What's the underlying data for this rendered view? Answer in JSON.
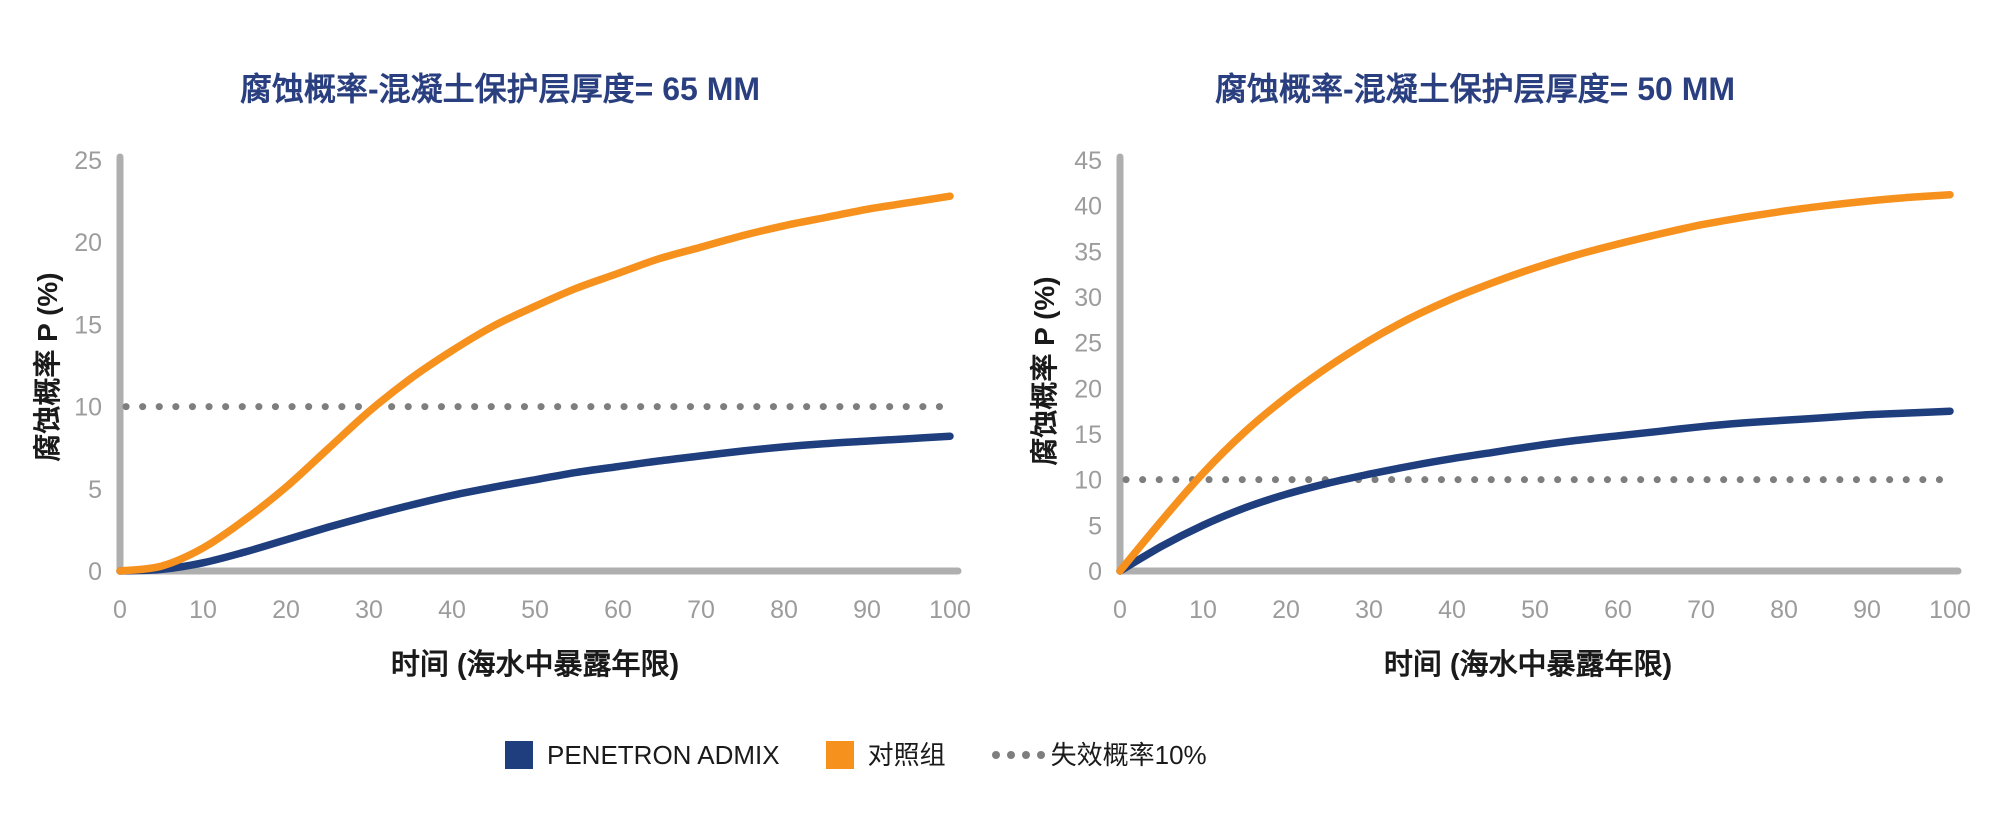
{
  "page": {
    "background": "#ffffff"
  },
  "colors": {
    "title_blue": "#2A3F80",
    "series_blue": "#1F3E7E",
    "series_orange": "#F6911E",
    "threshold_gray": "#7E7E7E",
    "axis_gray": "#AFAFAF",
    "tick_gray": "#9C9C9C",
    "text_black": "#1a1a1a"
  },
  "legend": {
    "items": [
      {
        "label": "PENETRON ADMIX",
        "swatch": "square",
        "color": "#1F3E7E"
      },
      {
        "label": "对照组",
        "swatch": "square",
        "color": "#F6911E"
      },
      {
        "label": "失效概率10%",
        "swatch": "dots",
        "color": "#7E7E7E"
      }
    ]
  },
  "chart_data": [
    {
      "type": "line",
      "title": "腐蚀概率-混凝土保护层厚度= 65 MM",
      "xlabel": "时间 (海水中暴露年限)",
      "ylabel": "腐蚀概率 P (%)",
      "xlim": [
        0,
        100
      ],
      "ylim": [
        0,
        25
      ],
      "xticks": [
        0,
        10,
        20,
        30,
        40,
        50,
        60,
        70,
        80,
        90,
        100
      ],
      "yticks": [
        0,
        5,
        10,
        15,
        20,
        25
      ],
      "grid": false,
      "legend_position": "bottom-shared",
      "threshold": {
        "value": 10,
        "style": "dotted",
        "color": "#7E7E7E",
        "label": "失效概率10%"
      },
      "x": [
        0,
        5,
        10,
        15,
        20,
        25,
        30,
        35,
        40,
        45,
        50,
        55,
        60,
        65,
        70,
        75,
        80,
        85,
        90,
        95,
        100
      ],
      "series": [
        {
          "name": "PENETRON ADMIX",
          "color": "#1F3E7E",
          "values": [
            0,
            0.1,
            0.5,
            1.15,
            1.9,
            2.65,
            3.35,
            4.0,
            4.6,
            5.1,
            5.55,
            6.0,
            6.35,
            6.7,
            7.0,
            7.3,
            7.55,
            7.75,
            7.9,
            8.05,
            8.2
          ]
        },
        {
          "name": "对照组",
          "color": "#F6911E",
          "values": [
            0,
            0.3,
            1.4,
            3.1,
            5.1,
            7.4,
            9.7,
            11.7,
            13.4,
            14.9,
            16.1,
            17.2,
            18.1,
            19.0,
            19.7,
            20.4,
            21.0,
            21.5,
            22.0,
            22.4,
            22.8
          ]
        }
      ]
    },
    {
      "type": "line",
      "title": "腐蚀概率-混凝土保护层厚度= 50 MM",
      "xlabel": "时间 (海水中暴露年限)",
      "ylabel": "腐蚀概率 P (%)",
      "xlim": [
        0,
        100
      ],
      "ylim": [
        0,
        45
      ],
      "xticks": [
        0,
        10,
        20,
        30,
        40,
        50,
        60,
        70,
        80,
        90,
        100
      ],
      "yticks": [
        0,
        5,
        10,
        15,
        20,
        25,
        30,
        35,
        40,
        45
      ],
      "grid": false,
      "legend_position": "bottom-shared",
      "threshold": {
        "value": 10,
        "style": "dotted",
        "color": "#7E7E7E",
        "label": "失效概率10%"
      },
      "x": [
        0,
        5,
        10,
        15,
        20,
        25,
        30,
        35,
        40,
        45,
        50,
        55,
        60,
        65,
        70,
        75,
        80,
        85,
        90,
        95,
        100
      ],
      "series": [
        {
          "name": "PENETRON ADMIX",
          "color": "#1F3E7E",
          "values": [
            0,
            2.7,
            5.0,
            6.9,
            8.4,
            9.6,
            10.6,
            11.5,
            12.3,
            13.0,
            13.7,
            14.3,
            14.8,
            15.3,
            15.8,
            16.2,
            16.5,
            16.8,
            17.1,
            17.3,
            17.5
          ]
        },
        {
          "name": "对照组",
          "color": "#F6911E",
          "values": [
            0,
            5.5,
            10.7,
            15.2,
            19.0,
            22.3,
            25.2,
            27.7,
            29.8,
            31.6,
            33.2,
            34.6,
            35.8,
            36.9,
            37.9,
            38.7,
            39.4,
            40.0,
            40.5,
            40.9,
            41.2
          ]
        }
      ]
    }
  ]
}
